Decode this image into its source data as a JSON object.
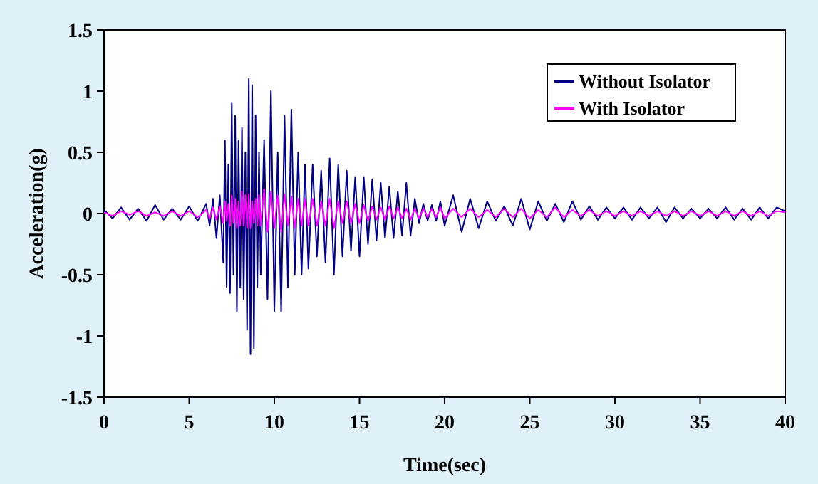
{
  "chart_data": {
    "type": "line",
    "xlabel": "Time(sec)",
    "ylabel": "Acceleration(g)",
    "xlim": [
      0,
      40
    ],
    "xticks": [
      0,
      5,
      10,
      15,
      20,
      25,
      30,
      35,
      40
    ],
    "ylim": [
      -1.5,
      1.5
    ],
    "yticks": [
      -1.5,
      -1,
      -0.5,
      0,
      0.5,
      1,
      1.5
    ],
    "grid": false,
    "legend": "top right",
    "marker": "none",
    "line_style": "solid",
    "x": [
      0,
      0.5,
      1,
      1.5,
      2,
      2.5,
      3,
      3.5,
      4,
      4.5,
      5,
      5.5,
      6,
      6.2,
      6.4,
      6.6,
      6.8,
      7,
      7.1,
      7.2,
      7.3,
      7.4,
      7.5,
      7.6,
      7.7,
      7.8,
      7.9,
      8,
      8.1,
      8.2,
      8.3,
      8.4,
      8.5,
      8.6,
      8.7,
      8.8,
      8.9,
      9,
      9.1,
      9.2,
      9.4,
      9.6,
      9.8,
      10,
      10.2,
      10.4,
      10.6,
      10.8,
      11,
      11.2,
      11.4,
      11.6,
      11.8,
      12,
      12.25,
      12.5,
      12.75,
      13,
      13.25,
      13.5,
      13.75,
      14,
      14.25,
      14.5,
      14.75,
      15,
      15.25,
      15.5,
      15.75,
      16,
      16.25,
      16.5,
      16.75,
      17,
      17.25,
      17.5,
      17.75,
      18,
      18.25,
      18.5,
      18.75,
      19,
      19.25,
      19.5,
      19.75,
      20,
      20.5,
      21,
      21.5,
      22,
      22.5,
      23,
      23.5,
      24,
      24.5,
      25,
      25.5,
      26,
      26.5,
      27,
      27.5,
      28,
      28.5,
      29,
      29.5,
      30,
      30.5,
      31,
      31.5,
      32,
      32.5,
      33,
      33.5,
      34,
      34.5,
      35,
      35.5,
      36,
      36.5,
      37,
      37.5,
      38,
      38.5,
      39,
      39.5,
      40
    ],
    "series": [
      {
        "name": "Without Isolator",
        "color": "#000080",
        "values": [
          0.03,
          -0.04,
          0.05,
          -0.05,
          0.04,
          -0.06,
          0.07,
          -0.05,
          0.04,
          -0.05,
          0.06,
          -0.06,
          0.08,
          -0.1,
          0.12,
          -0.2,
          0.15,
          -0.4,
          0.6,
          -0.6,
          0.4,
          -0.65,
          0.9,
          -0.5,
          0.8,
          -0.8,
          0.6,
          -0.6,
          0.7,
          -0.7,
          0.5,
          -0.95,
          1.1,
          -1.15,
          1.05,
          -1.1,
          0.8,
          -0.6,
          0.5,
          -0.5,
          0.6,
          -0.7,
          1.0,
          -0.8,
          0.5,
          -0.8,
          0.8,
          -0.6,
          0.85,
          -0.5,
          0.5,
          -0.5,
          0.4,
          -0.45,
          0.4,
          -0.35,
          0.35,
          -0.4,
          0.45,
          -0.5,
          0.4,
          -0.35,
          0.35,
          -0.3,
          0.3,
          -0.35,
          0.3,
          -0.25,
          0.28,
          -0.22,
          0.25,
          -0.2,
          0.22,
          -0.2,
          0.18,
          -0.18,
          0.25,
          -0.18,
          0.12,
          -0.08,
          0.08,
          -0.06,
          0.07,
          -0.06,
          0.1,
          -0.1,
          0.15,
          -0.15,
          0.12,
          -0.12,
          0.1,
          -0.06,
          0.06,
          -0.1,
          0.12,
          -0.13,
          0.1,
          -0.06,
          0.08,
          -0.07,
          0.1,
          -0.05,
          0.06,
          -0.05,
          0.05,
          -0.04,
          0.05,
          -0.05,
          0.05,
          -0.04,
          0.05,
          -0.07,
          0.05,
          -0.04,
          0.04,
          -0.04,
          0.04,
          -0.04,
          0.05,
          -0.05,
          0.04,
          -0.05,
          0.05,
          -0.04,
          0.05,
          0.02
        ]
      },
      {
        "name": "With Isolator",
        "color": "#ff00ff",
        "values": [
          0.01,
          -0.02,
          0.02,
          -0.01,
          0.02,
          -0.02,
          0.01,
          -0.02,
          0.02,
          -0.02,
          0.02,
          -0.03,
          0.03,
          -0.04,
          0.05,
          -0.05,
          0.06,
          -0.08,
          0.1,
          -0.06,
          0.08,
          -0.1,
          0.15,
          -0.08,
          0.12,
          -0.12,
          0.1,
          -0.1,
          0.18,
          -0.1,
          0.15,
          -0.12,
          0.16,
          -0.12,
          0.1,
          -0.08,
          0.12,
          -0.1,
          0.15,
          -0.1,
          0.2,
          -0.15,
          0.18,
          -0.12,
          0.15,
          -0.15,
          0.16,
          -0.1,
          0.14,
          -0.12,
          0.12,
          -0.1,
          0.12,
          -0.1,
          0.12,
          -0.1,
          0.1,
          -0.1,
          0.12,
          -0.12,
          0.1,
          -0.08,
          0.1,
          -0.08,
          0.08,
          -0.08,
          0.07,
          -0.06,
          0.06,
          -0.05,
          0.05,
          -0.05,
          0.06,
          -0.04,
          0.05,
          -0.04,
          0.04,
          -0.05,
          0.04,
          -0.04,
          0.04,
          -0.03,
          0.04,
          -0.03,
          0.05,
          -0.04,
          0.04,
          -0.03,
          0.04,
          -0.03,
          0.03,
          -0.03,
          0.04,
          -0.03,
          0.04,
          -0.04,
          0.03,
          -0.03,
          0.05,
          -0.03,
          0.03,
          -0.02,
          0.03,
          -0.02,
          0.02,
          -0.02,
          0.02,
          -0.02,
          0.02,
          -0.02,
          0.02,
          -0.02,
          0.02,
          -0.02,
          0.02,
          -0.02,
          0.02,
          -0.02,
          0.02,
          -0.02,
          0.02,
          -0.02,
          0.02,
          -0.02,
          0.02,
          0.01
        ]
      }
    ]
  }
}
